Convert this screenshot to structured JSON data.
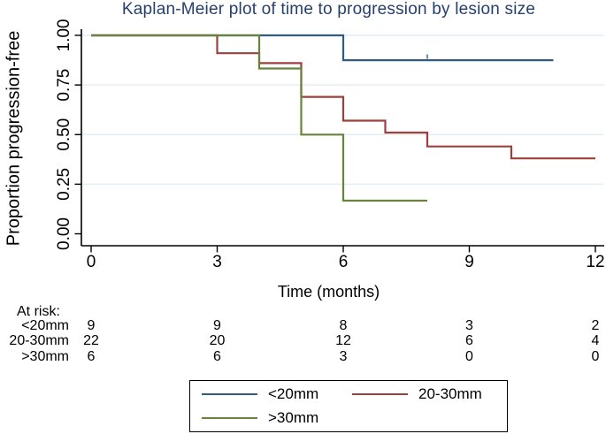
{
  "title": "Kaplan-Meier plot of time to progression by lesion size",
  "chart_data": {
    "type": "line",
    "subtype": "kaplan-meier-step",
    "title": "Kaplan-Meier plot of time to progression by lesion size",
    "xlabel": "Time (months)",
    "ylabel": "Proportion progression-free",
    "xlim": [
      0,
      12
    ],
    "ylim": [
      0.0,
      1.0
    ],
    "x_ticks": [
      0,
      3,
      6,
      9,
      12
    ],
    "y_ticks": [
      "0.00",
      "0.25",
      "0.50",
      "0.75",
      "1.00"
    ],
    "grid": "horizontal gridlines at 0.25, 0.50, 0.75, 1.00",
    "legend_position": "bottom",
    "series": [
      {
        "name": "<20mm",
        "color": "#2e5c87",
        "steps": [
          [
            0,
            1.0
          ],
          [
            6,
            1.0
          ],
          [
            6,
            0.875
          ],
          [
            11,
            0.875
          ]
        ],
        "censor_marks": [
          [
            8,
            0.875
          ]
        ]
      },
      {
        "name": "20-30mm",
        "color": "#9d403d",
        "steps": [
          [
            0,
            1.0
          ],
          [
            3,
            1.0
          ],
          [
            3,
            0.91
          ],
          [
            4,
            0.91
          ],
          [
            4,
            0.86
          ],
          [
            5,
            0.86
          ],
          [
            5,
            0.69
          ],
          [
            6,
            0.69
          ],
          [
            6,
            0.57
          ],
          [
            7,
            0.57
          ],
          [
            7,
            0.51
          ],
          [
            8,
            0.51
          ],
          [
            8,
            0.44
          ],
          [
            10,
            0.44
          ],
          [
            10,
            0.38
          ],
          [
            12,
            0.38
          ]
        ],
        "censor_marks": []
      },
      {
        "name": ">30mm",
        "color": "#68833c",
        "steps": [
          [
            0,
            1.0
          ],
          [
            4,
            1.0
          ],
          [
            4,
            0.833
          ],
          [
            5,
            0.833
          ],
          [
            5,
            0.5
          ],
          [
            6,
            0.5
          ],
          [
            6,
            0.167
          ],
          [
            8,
            0.167
          ]
        ],
        "censor_marks": []
      }
    ]
  },
  "at_risk": {
    "heading": "At risk:",
    "months": [
      0,
      3,
      6,
      9,
      12
    ],
    "rows": [
      {
        "label": "<20mm",
        "counts": [
          "9",
          "9",
          "8",
          "3",
          "2"
        ]
      },
      {
        "label": "20-30mm",
        "counts": [
          "22",
          "20",
          "12",
          "6",
          "4"
        ]
      },
      {
        "label": ">30mm",
        "counts": [
          "6",
          "6",
          "3",
          "0",
          "0"
        ]
      }
    ]
  },
  "legend": {
    "items": [
      {
        "label": "<20mm",
        "color": "#2e5c87"
      },
      {
        "label": "20-30mm",
        "color": "#9d403d"
      },
      {
        "label": ">30mm",
        "color": "#68833c"
      }
    ]
  },
  "colors": {
    "title": "#26406e",
    "grid": "#e4eef5",
    "axis": "#000000",
    "background": "#ffffff"
  }
}
